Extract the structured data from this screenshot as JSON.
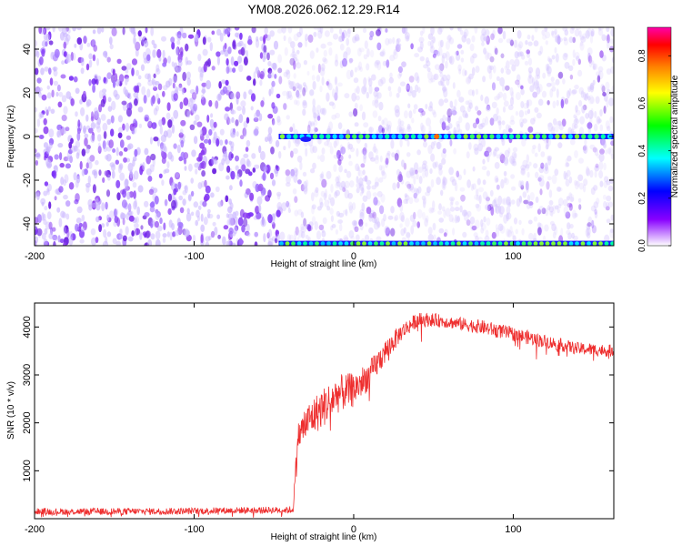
{
  "title": "YM08.2026.062.12.29.R14",
  "colors": {
    "spectrogram_bg": "#ffffff",
    "spectrogram_low": "#e4d8ff",
    "spectrogram_mid": "#8a2be2",
    "snr_line": "#ee2e2e",
    "frame": "#000000"
  },
  "chart_data": [
    {
      "type": "heatmap",
      "name": "spectrogram",
      "title": "YM08.2026.062.12.29.R14",
      "xlabel": "Height of straight line (km)",
      "ylabel": "Frequency (Hz)",
      "xlim": [
        -200,
        163
      ],
      "ylim": [
        -50,
        50
      ],
      "xticks": [
        -200,
        -100,
        0,
        100
      ],
      "yticks": [
        -40,
        -20,
        0,
        20,
        40
      ],
      "signal_band_hz": 0,
      "signal_onset_km": -47,
      "bottom_band_hz": -49,
      "colorbar": {
        "label": "Normalized spectral amplitude",
        "range": [
          0,
          0.92
        ],
        "ticks": [
          "0.0",
          "0.2",
          "0.4",
          "0.6",
          "0.8"
        ],
        "colors": [
          "#ffffff",
          "#8800ff",
          "#0000ff",
          "#00ffff",
          "#00ff00",
          "#ffff00",
          "#ff8000",
          "#ff0000",
          "#ff00aa"
        ]
      }
    },
    {
      "type": "line",
      "name": "snr",
      "xlabel": "Height of straight line (km)",
      "ylabel": "SNR (10 * v/v)",
      "xlim": [
        -200,
        163
      ],
      "ylim": [
        0,
        4500
      ],
      "xticks": [
        -200,
        -100,
        0,
        100
      ],
      "yticks": [
        1000,
        2000,
        3000,
        4000
      ],
      "series": [
        {
          "name": "SNR",
          "x": [
            -200,
            -150,
            -100,
            -60,
            -38,
            -35,
            -30,
            -20,
            -10,
            0,
            10,
            20,
            30,
            40,
            50,
            60,
            80,
            100,
            120,
            140,
            163
          ],
          "y": [
            150,
            150,
            160,
            180,
            180,
            1700,
            2000,
            2300,
            2600,
            2700,
            3000,
            3500,
            3900,
            4150,
            4150,
            4100,
            4000,
            3850,
            3700,
            3550,
            3500
          ],
          "noise": [
            70,
            70,
            70,
            70,
            70,
            300,
            380,
            420,
            400,
            350,
            300,
            250,
            180,
            150,
            140,
            130,
            150,
            150,
            140,
            130,
            130
          ]
        }
      ]
    }
  ]
}
